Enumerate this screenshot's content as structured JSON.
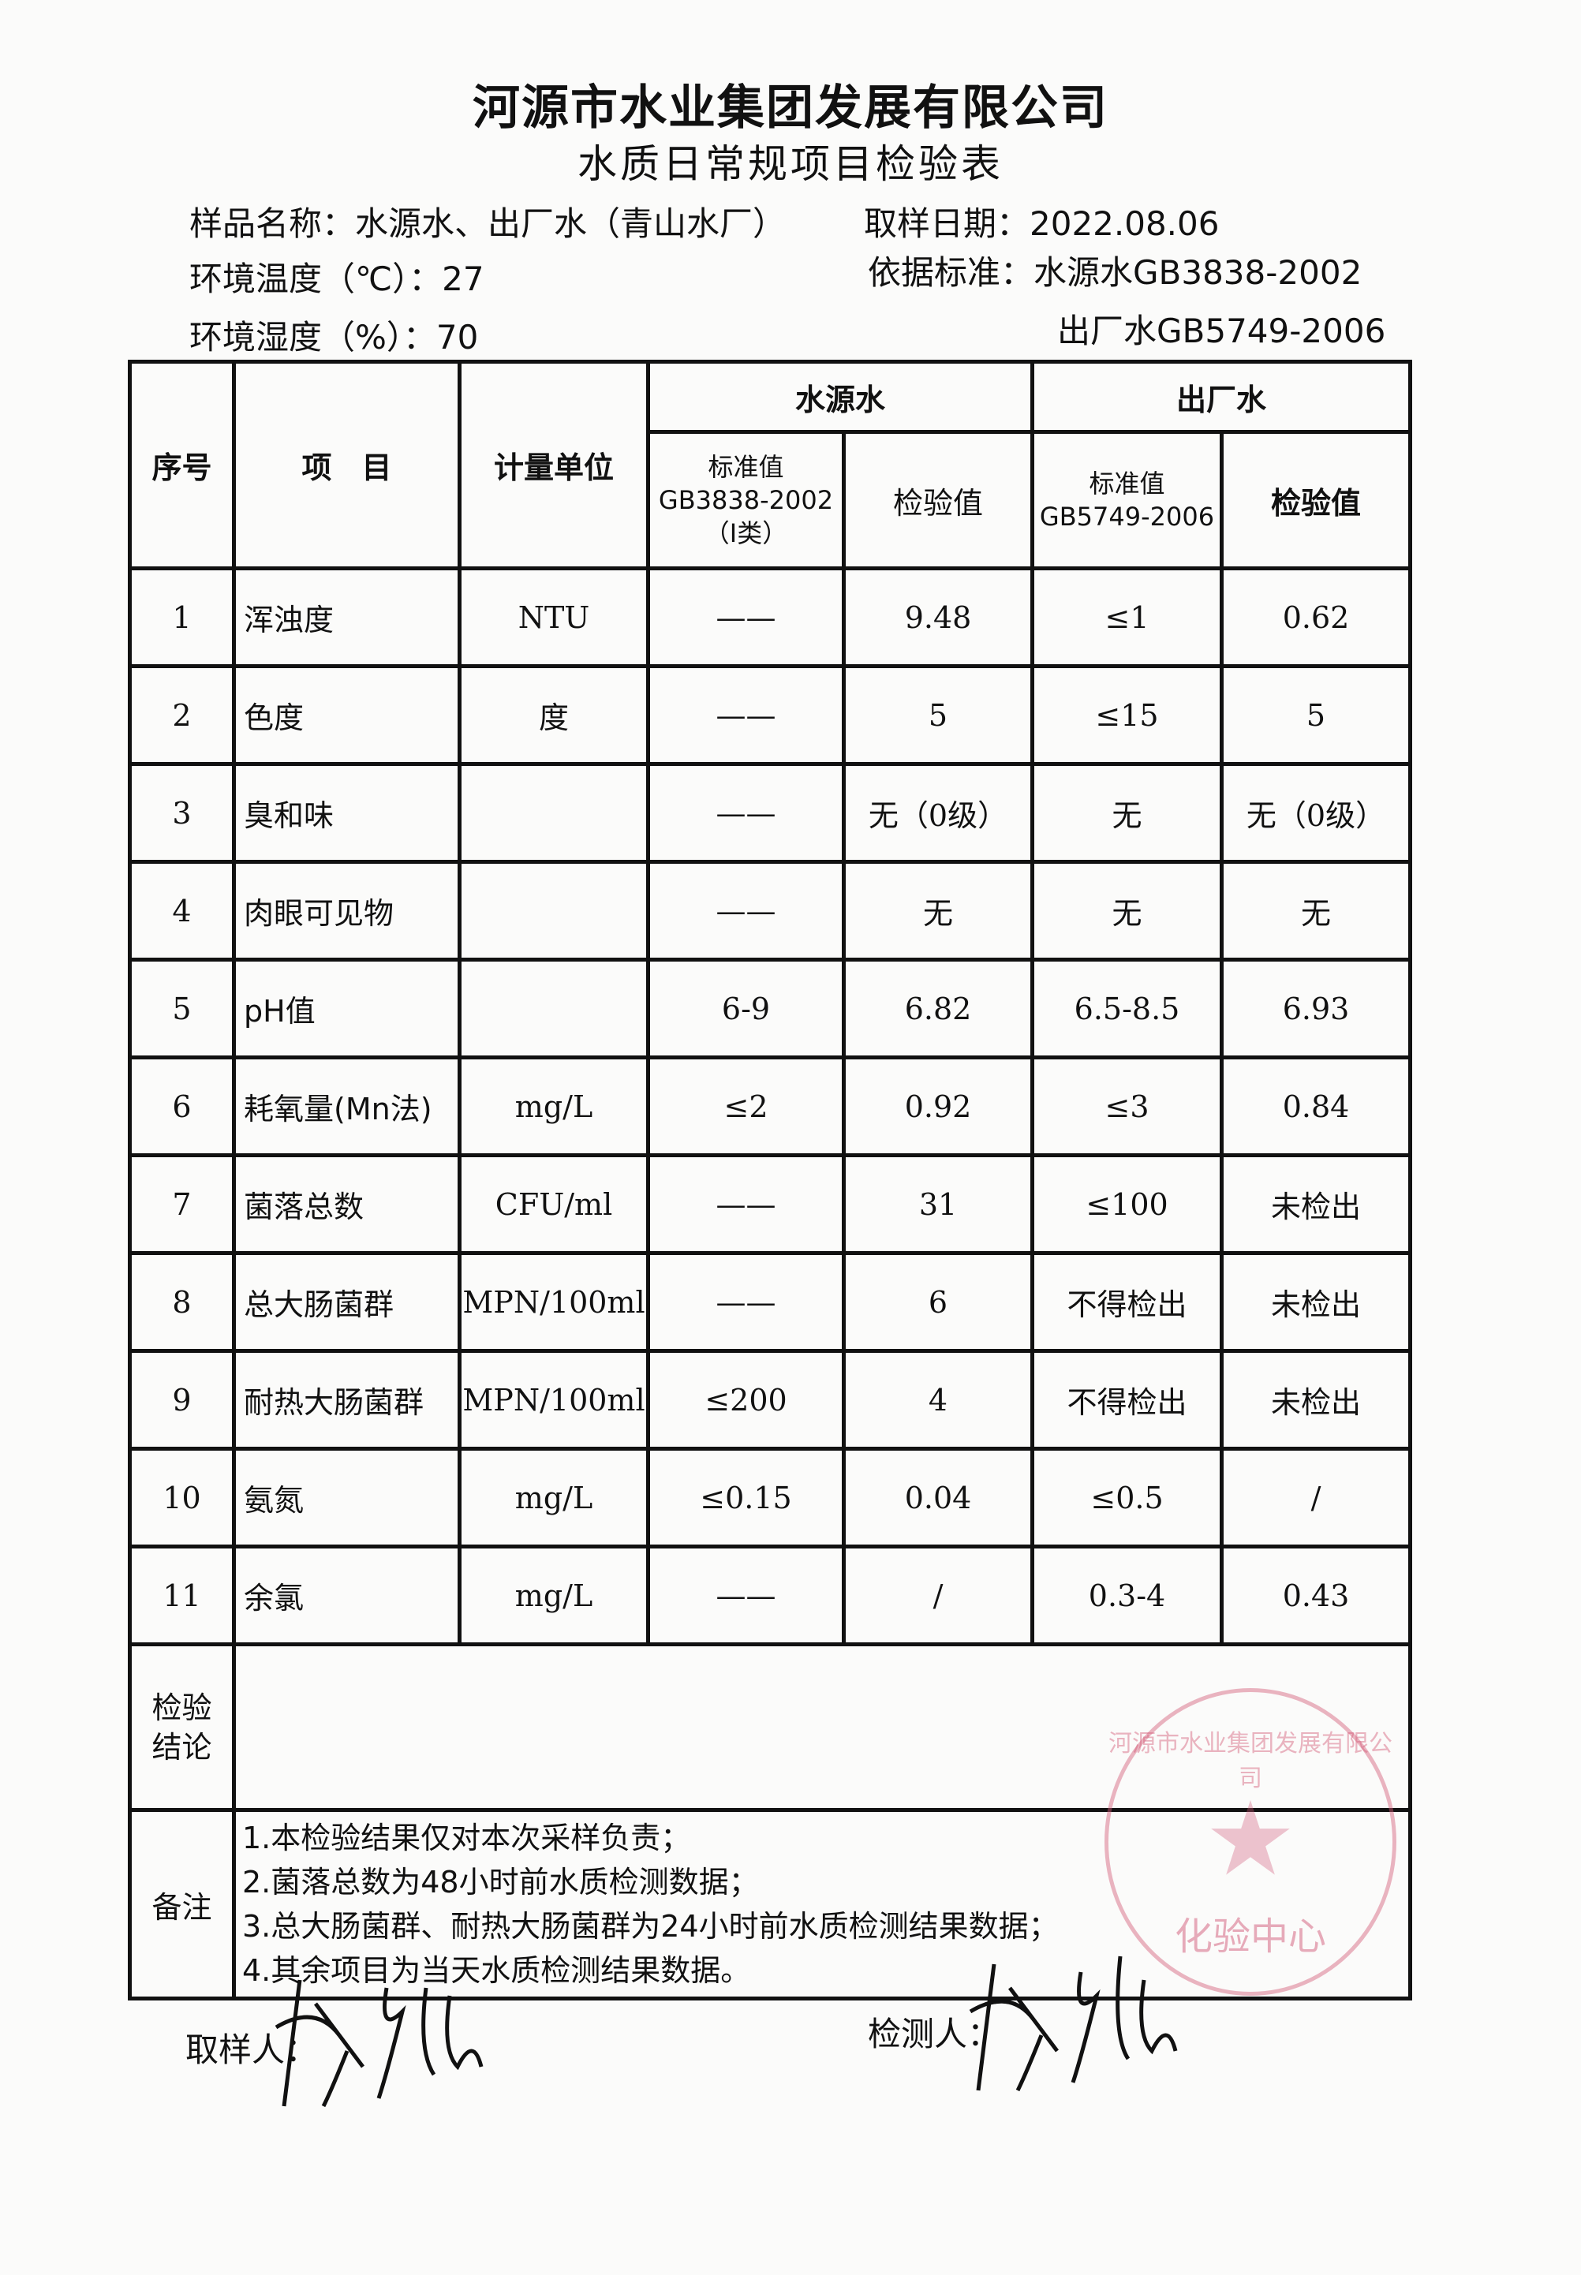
{
  "title": "河源市水业集团发展有限公司",
  "subtitle": "水质日常规项目检验表",
  "info": {
    "sample_name": "样品名称：水源水、出厂水（青山水厂）",
    "sample_date": "取样日期：2022.08.06",
    "temperature": "环境温度（℃）：27",
    "standard_source": "依据标准：水源水GB3838-2002",
    "humidity": "环境湿度（%）：70",
    "standard_factory": "出厂水GB5749-2006"
  },
  "table": {
    "headers": {
      "no": "序号",
      "item": "项　目",
      "unit": "计量单位",
      "source_water": "水源水",
      "factory_water": "出厂水",
      "source_std": "标准值",
      "source_std_code": "GB3838-2002",
      "source_std_class": "（Ⅰ类）",
      "source_value": "检验值",
      "factory_std": "标准值",
      "factory_std_code": "GB5749-2006",
      "factory_value": "检验值"
    },
    "rows": [
      {
        "no": "1",
        "item": "浑浊度",
        "unit": "NTU",
        "src_std": "——",
        "src_val": "9.48",
        "fac_std": "≤1",
        "fac_val": "0.62"
      },
      {
        "no": "2",
        "item": "色度",
        "unit": "度",
        "src_std": "——",
        "src_val": "5",
        "fac_std": "≤15",
        "fac_val": "5"
      },
      {
        "no": "3",
        "item": "臭和味",
        "unit": "",
        "src_std": "——",
        "src_val": "无（0级）",
        "fac_std": "无",
        "fac_val": "无（0级）"
      },
      {
        "no": "4",
        "item": "肉眼可见物",
        "unit": "",
        "src_std": "——",
        "src_val": "无",
        "fac_std": "无",
        "fac_val": "无"
      },
      {
        "no": "5",
        "item": "pH值",
        "unit": "",
        "src_std": "6-9",
        "src_val": "6.82",
        "fac_std": "6.5-8.5",
        "fac_val": "6.93"
      },
      {
        "no": "6",
        "item": "耗氧量(Mn法)",
        "unit": "mg/L",
        "src_std": "≤2",
        "src_val": "0.92",
        "fac_std": "≤3",
        "fac_val": "0.84"
      },
      {
        "no": "7",
        "item": "菌落总数",
        "unit": "CFU/ml",
        "src_std": "——",
        "src_val": "31",
        "fac_std": "≤100",
        "fac_val": "未检出"
      },
      {
        "no": "8",
        "item": "总大肠菌群",
        "unit": "MPN/100ml",
        "src_std": "——",
        "src_val": "6",
        "fac_std": "不得检出",
        "fac_val": "未检出"
      },
      {
        "no": "9",
        "item": "耐热大肠菌群",
        "unit": "MPN/100ml",
        "src_std": "≤200",
        "src_val": "4",
        "fac_std": "不得检出",
        "fac_val": "未检出"
      },
      {
        "no": "10",
        "item": "氨氮",
        "unit": "mg/L",
        "src_std": "≤0.15",
        "src_val": "0.04",
        "fac_std": "≤0.5",
        "fac_val": "/"
      },
      {
        "no": "11",
        "item": "余氯",
        "unit": "mg/L",
        "src_std": "——",
        "src_val": "/",
        "fac_std": "0.3-4",
        "fac_val": "0.43"
      }
    ],
    "conclusion_label": "检验结论",
    "conclusion": "",
    "notes_label": "备注",
    "notes": [
      "1.本检验结果仅对本次采样负责；",
      "2.菌落总数为48小时前水质检测数据；",
      "3.总大肠菌群、耐热大肠菌群为24小时前水质检测结果数据；",
      "4.其余项目为当天水质检测结果数据。"
    ]
  },
  "stamp": {
    "ring": "河源市水业集团发展有限公司",
    "center": "化验中心",
    "color": "#d25a78"
  },
  "signatures": {
    "sampler_label": "取样人：",
    "tester_label": "检测人：",
    "sampler_signature": "李秀(handwritten)",
    "tester_signature": "李秀 (handwritten)"
  }
}
